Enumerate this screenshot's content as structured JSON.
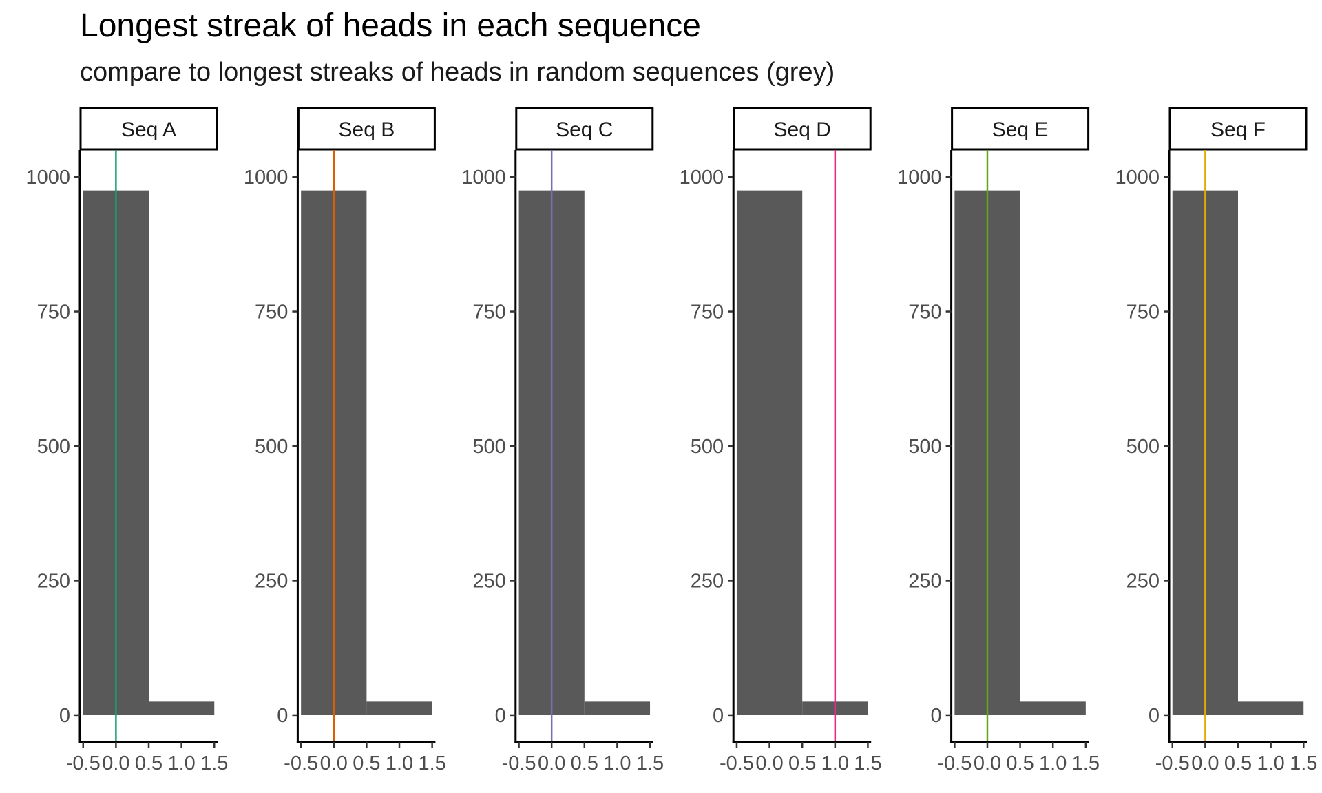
{
  "chart_data": {
    "type": "bar",
    "title": "Longest streak of heads in each sequence",
    "subtitle": "compare to longest streaks of heads in random sequences (grey)",
    "xlabel": "",
    "ylabel": "",
    "xlim": [
      -0.55,
      1.55
    ],
    "ylim": [
      -50,
      1050
    ],
    "x_ticks": [
      -0.5,
      0.0,
      0.5,
      1.0,
      1.5
    ],
    "x_tick_labels": [
      "-0.5",
      "0.0",
      "0.5",
      "1.0",
      "1.5"
    ],
    "y_ticks": [
      0,
      250,
      500,
      750,
      1000
    ],
    "y_tick_labels": [
      "0",
      "250",
      "500",
      "750",
      "1000"
    ],
    "grid": false,
    "legend": "none",
    "bar_color": "#595959",
    "histogram_bins": [
      {
        "x_start": -0.5,
        "x_end": 0.5,
        "count": 975
      },
      {
        "x_start": 0.5,
        "x_end": 1.5,
        "count": 25
      }
    ],
    "panels": [
      {
        "label": "Seq A",
        "observed_streak": 0,
        "line_color": "#1B9E77"
      },
      {
        "label": "Seq B",
        "observed_streak": 0,
        "line_color": "#D95F02"
      },
      {
        "label": "Seq C",
        "observed_streak": 0,
        "line_color": "#7570B3"
      },
      {
        "label": "Seq D",
        "observed_streak": 1,
        "line_color": "#E7298A"
      },
      {
        "label": "Seq E",
        "observed_streak": 0,
        "line_color": "#66A61E"
      },
      {
        "label": "Seq F",
        "observed_streak": 0,
        "line_color": "#E6AB02"
      }
    ]
  }
}
